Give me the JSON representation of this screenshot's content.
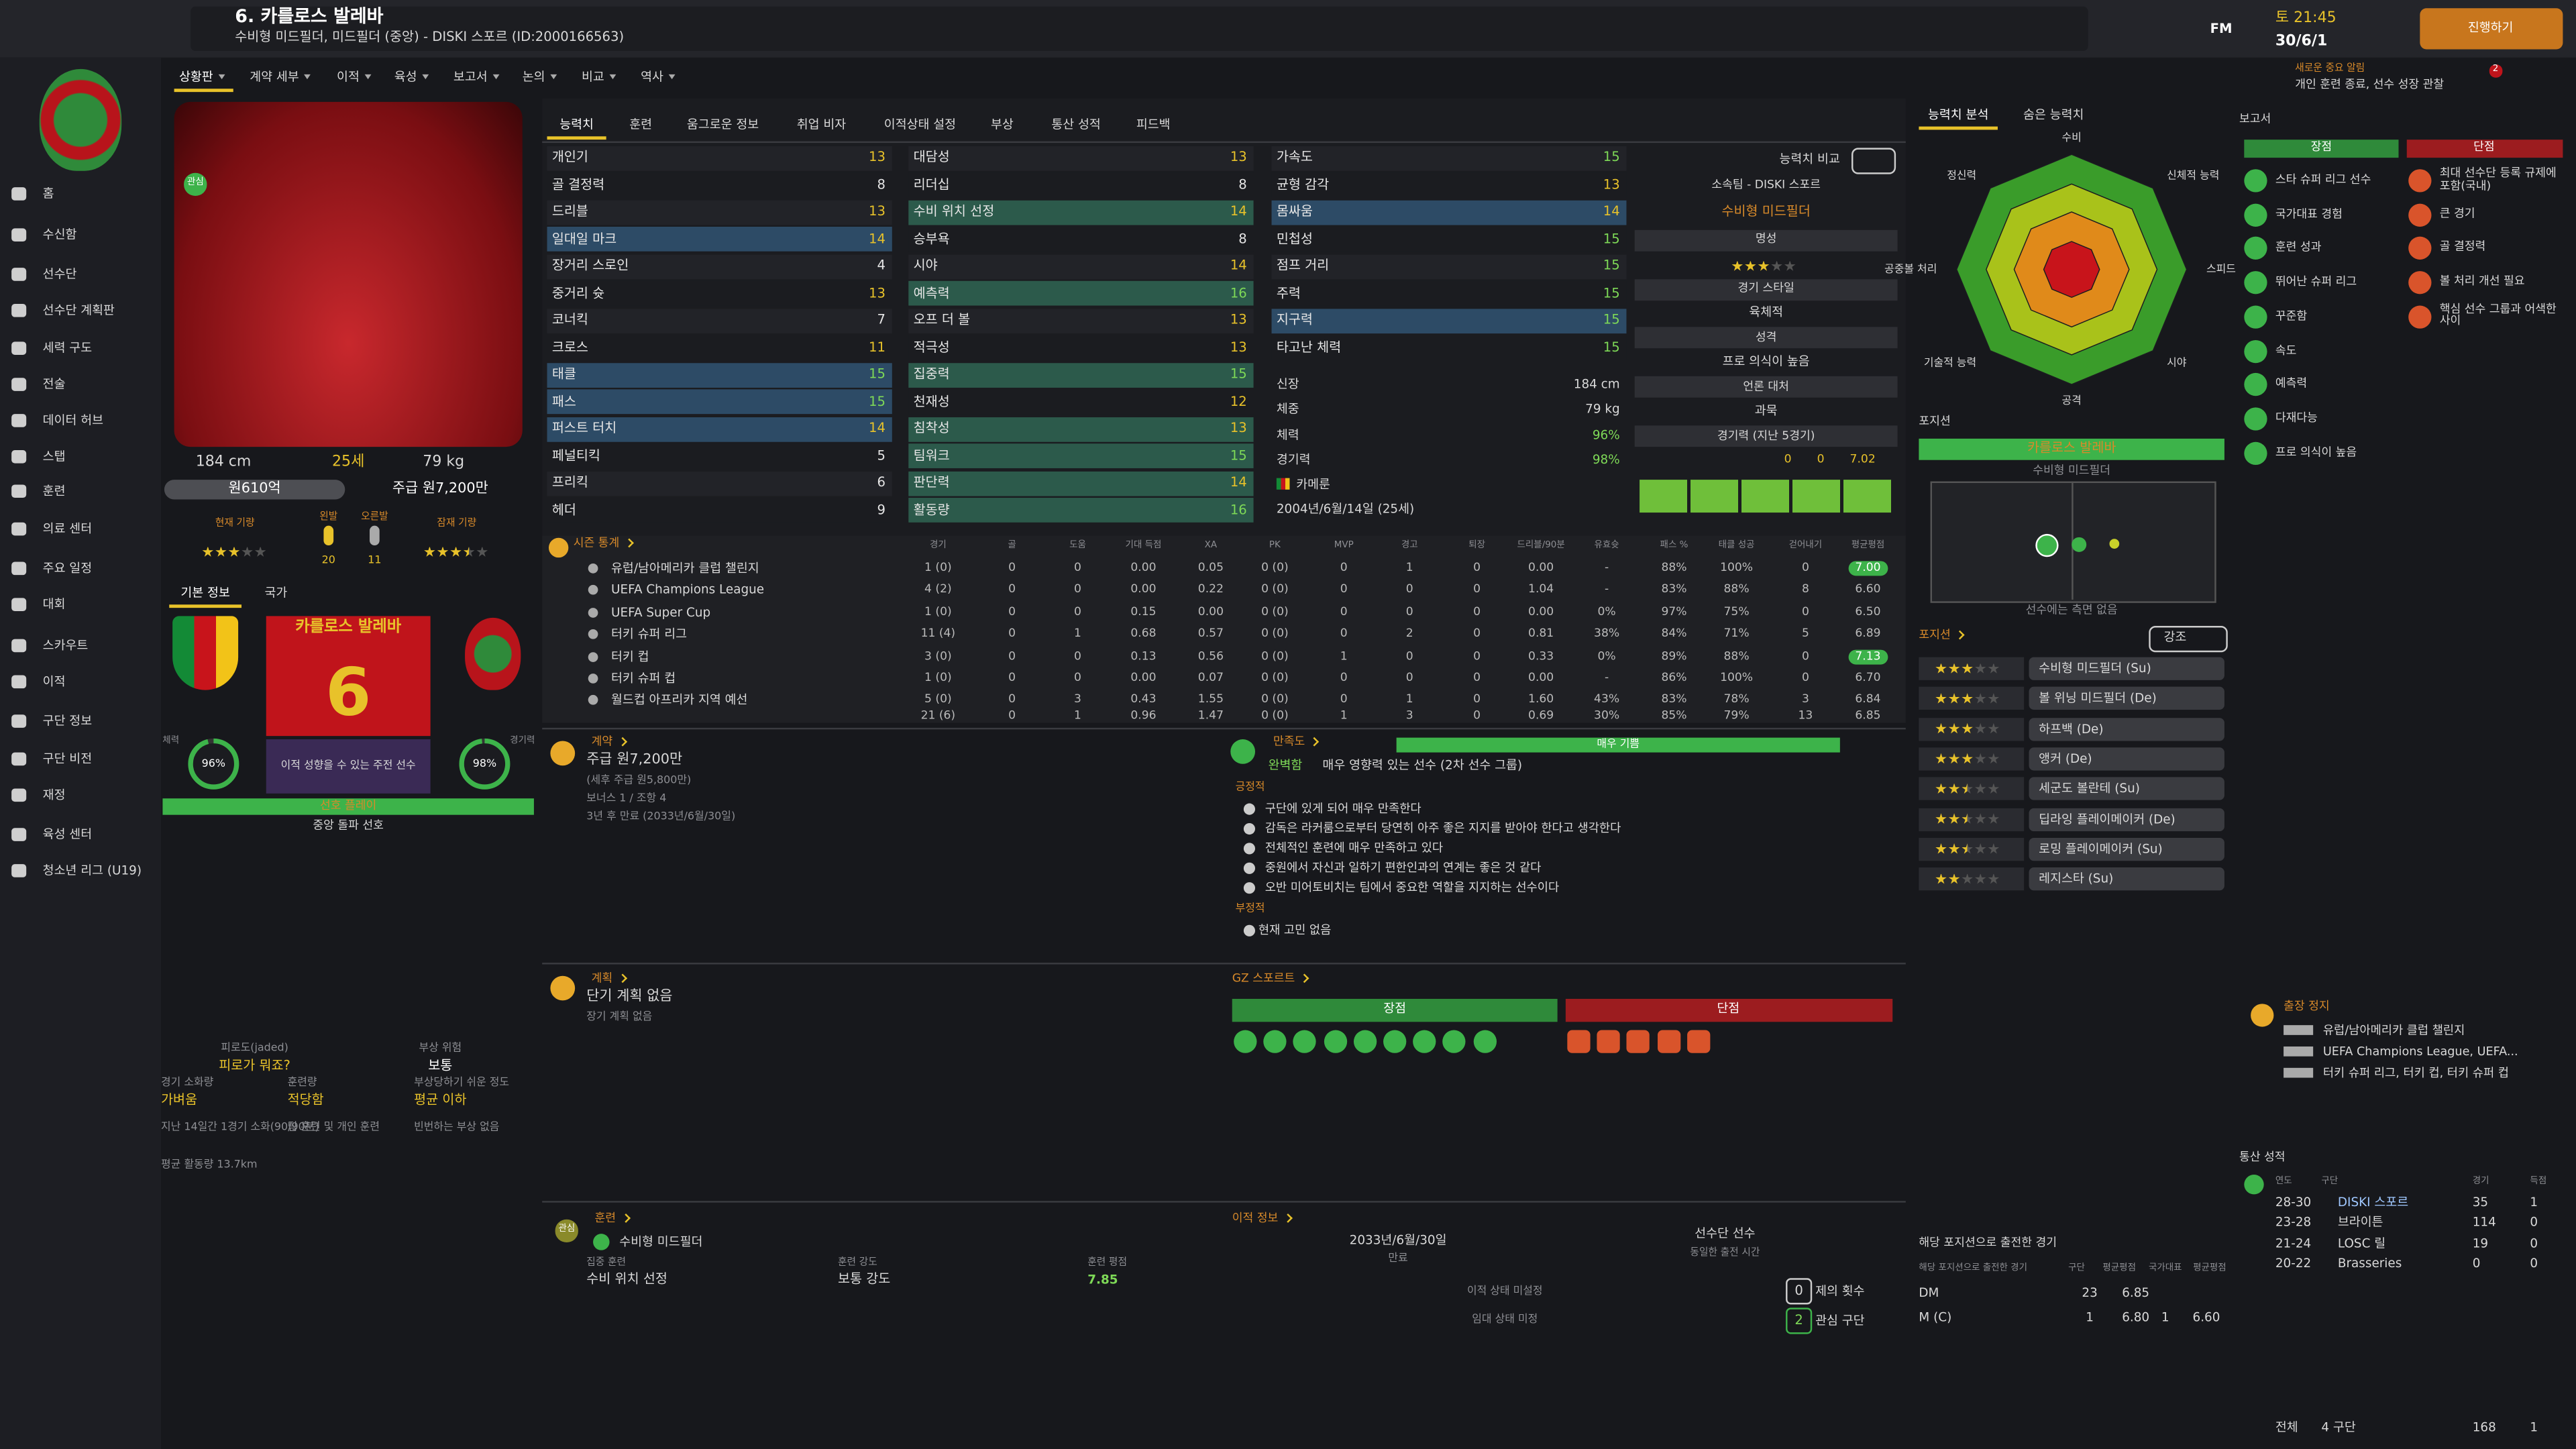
{
  "header": {
    "title": "6. 카를로스 발레바",
    "subtitle": "수비형 미드필더, 미드필더 (중앙) - DISKI 스포르 (ID:2000166563)",
    "brand": "FM",
    "time": "토 21:45",
    "date": "30/6/1",
    "continue": "진행하기",
    "notice_title": "새로운 중요 알림",
    "notice": "개인 훈련 종료, 선수 성장 관찰",
    "notice_count": 2
  },
  "nav": [
    "홈",
    "수신함",
    "선수단",
    "선수단 계획판",
    "세력 구도",
    "전술",
    "데이터 허브",
    "스탭",
    "훈련",
    "의료 센터",
    "주요 일정",
    "대회",
    "스카우트",
    "이적",
    "구단 정보",
    "구단 비전",
    "재정",
    "육성 센터",
    "청소년 리그 (U19)"
  ],
  "tabs": [
    "상황판",
    "계약 세부",
    "이적",
    "육성",
    "보고서",
    "논의",
    "비교",
    "역사"
  ],
  "profile": {
    "badge": "관심",
    "height": "184 cm",
    "age": "25세",
    "weight": "79 kg",
    "value": "원610억",
    "wage": "주급 원7,200만",
    "current_label": "현재 기량",
    "current_stars": 3,
    "left_foot_label": "왼발",
    "left_foot": 20,
    "right_foot_label": "오른발",
    "right_foot": 11,
    "potential_label": "잠재 기량",
    "potential_stars": 3.5
  },
  "info_tabs": [
    "기본 정보",
    "국가"
  ],
  "card": {
    "name": "카를로스 발레바",
    "number": 6,
    "status": "이적 성향을 수 있는 주전 선수",
    "gauges": [
      {
        "name": "체력",
        "value": 96,
        "value_label": "96%"
      },
      {
        "name": "경기력",
        "value": 98,
        "value_label": "98%"
      }
    ],
    "play_label": "선호 플레이",
    "play": "중앙 돌파 선호"
  },
  "fitness": [
    {
      "label": "피로도(jaded)",
      "value": "피로가 뭐죠?"
    },
    {
      "label": "부상 위험",
      "value": "보통"
    },
    {
      "label": "경기 소화량",
      "value": "가벼움"
    },
    {
      "label": "훈련량",
      "value": "적당함"
    },
    {
      "label": "부상당하기 쉬운 정도",
      "value": "평균 이하"
    }
  ],
  "fitness_notes": [
    "지난 14일간 1경기 소화(90/90분)",
    "팀 훈련 및 개인 훈련",
    "빈번하는 부상 없음",
    "평균 활동량 13.7km"
  ],
  "attributes": {
    "tabs": [
      "능력치",
      "훈련",
      "움그로운 정보",
      "취업 비자",
      "이적상태 설정",
      "부상",
      "통산 성적",
      "피드백"
    ],
    "columns": [
      [
        {
          "name": "개인기",
          "value": 13
        },
        {
          "name": "골 결정력",
          "value": 8
        },
        {
          "name": "드리블",
          "value": 13
        },
        {
          "name": "일대일 마크",
          "value": 14,
          "key": true
        },
        {
          "name": "장거리 스로인",
          "value": 4
        },
        {
          "name": "중거리 슛",
          "value": 13
        },
        {
          "name": "코너킥",
          "value": 7
        },
        {
          "name": "크로스",
          "value": 11
        },
        {
          "name": "태클",
          "value": 15,
          "key": true
        },
        {
          "name": "패스",
          "value": 15,
          "key": true
        },
        {
          "name": "퍼스트 터치",
          "value": 14,
          "key": true
        },
        {
          "name": "페널티킥",
          "value": 5
        },
        {
          "name": "프리킥",
          "value": 6
        },
        {
          "name": "헤더",
          "value": 9
        }
      ],
      [
        {
          "name": "대담성",
          "value": 13
        },
        {
          "name": "리더십",
          "value": 8
        },
        {
          "name": "수비 위치 선정",
          "value": 14,
          "key": true
        },
        {
          "name": "승부욕",
          "value": 8
        },
        {
          "name": "시야",
          "value": 14
        },
        {
          "name": "예측력",
          "value": 16,
          "key": true
        },
        {
          "name": "오프 더 볼",
          "value": 13
        },
        {
          "name": "적극성",
          "value": 13
        },
        {
          "name": "집중력",
          "value": 15,
          "key": true
        },
        {
          "name": "천재성",
          "value": 12
        },
        {
          "name": "침착성",
          "value": 13,
          "key": true
        },
        {
          "name": "팀워크",
          "value": 15,
          "key": true
        },
        {
          "name": "판단력",
          "value": 14,
          "key": true
        },
        {
          "name": "활동량",
          "value": 16,
          "key": true
        }
      ],
      [
        {
          "name": "가속도",
          "value": 15
        },
        {
          "name": "균형 감각",
          "value": 13
        },
        {
          "name": "몸싸움",
          "value": 14,
          "key": true
        },
        {
          "name": "민첩성",
          "value": 15
        },
        {
          "name": "점프 거리",
          "value": 15
        },
        {
          "name": "주력",
          "value": 15
        },
        {
          "name": "지구력",
          "value": 15,
          "key": true
        },
        {
          "name": "타고난 체력",
          "value": 15
        }
      ]
    ],
    "physical_info": [
      {
        "label": "신장",
        "value": "184 cm"
      },
      {
        "label": "체중",
        "value": "79 kg"
      },
      {
        "label": "체력",
        "value": "96%"
      },
      {
        "label": "경기력",
        "value": "98%"
      }
    ],
    "nationality": "카메룬",
    "birth": "2004년/6월/14일 (25세)"
  },
  "side": {
    "compare": "능력치 비교",
    "club": "소속팀 - DISKI 스포르",
    "position": "수비형 미드필더",
    "reputation_label": "명성",
    "reputation_stars": 3,
    "style_label": "경기 스타일",
    "style": "육체적",
    "personality_label": "성격",
    "personality": "프로 의식이 높음",
    "media_label": "언론 대처",
    "media": "과묵",
    "form_label": "경기력 (지난 5경기)",
    "goals": "0",
    "assists": "0",
    "form_rating": "7.02"
  },
  "season": {
    "title": "시즌 통계",
    "columns": [
      "경기",
      "골",
      "도움",
      "기대 득점",
      "XA",
      "PK",
      "MVP",
      "경고",
      "퇴장",
      "드리블/90분",
      "유효슛",
      "패스 %",
      "태클 성공",
      "걷어내기",
      "평균평점"
    ],
    "rows": [
      {
        "name": "유럽/남아메리카 클럽 챌린지",
        "cells": [
          "1 (0)",
          "0",
          "0",
          "0.00",
          "0.05",
          "0 (0)",
          "0",
          "1",
          "0",
          "0.00",
          "-",
          "88%",
          "100%",
          "0",
          "7.00"
        ]
      },
      {
        "name": "UEFA Champions League",
        "cells": [
          "4 (2)",
          "0",
          "0",
          "0.00",
          "0.22",
          "0 (0)",
          "0",
          "0",
          "0",
          "1.04",
          "-",
          "83%",
          "88%",
          "8",
          "6.60"
        ]
      },
      {
        "name": "UEFA Super Cup",
        "cells": [
          "1 (0)",
          "0",
          "0",
          "0.15",
          "0.00",
          "0 (0)",
          "0",
          "0",
          "0",
          "0.00",
          "0%",
          "97%",
          "75%",
          "0",
          "6.50"
        ]
      },
      {
        "name": "터키 슈퍼 리그",
        "cells": [
          "11 (4)",
          "0",
          "1",
          "0.68",
          "0.57",
          "0 (0)",
          "0",
          "2",
          "0",
          "0.81",
          "38%",
          "84%",
          "71%",
          "5",
          "6.89"
        ]
      },
      {
        "name": "터키 컵",
        "cells": [
          "3 (0)",
          "0",
          "0",
          "0.13",
          "0.56",
          "0 (0)",
          "1",
          "0",
          "0",
          "0.33",
          "0%",
          "89%",
          "88%",
          "0",
          "7.13"
        ]
      },
      {
        "name": "터키 슈퍼 컵",
        "cells": [
          "1 (0)",
          "0",
          "0",
          "0.00",
          "0.07",
          "0 (0)",
          "0",
          "0",
          "0",
          "0.00",
          "-",
          "86%",
          "100%",
          "0",
          "6.70"
        ]
      },
      {
        "name": "월드컵 아프리카 지역 예선",
        "cells": [
          "5 (0)",
          "0",
          "3",
          "0.43",
          "1.55",
          "0 (0)",
          "0",
          "1",
          "0",
          "1.60",
          "43%",
          "83%",
          "78%",
          "3",
          "6.84"
        ]
      }
    ],
    "total": [
      "21 (6)",
      "0",
      "1",
      "0.96",
      "1.47",
      "0 (0)",
      "1",
      "3",
      "0",
      "0.69",
      "30%",
      "85%",
      "79%",
      "13",
      "6.85"
    ]
  },
  "contract": {
    "title": "계약",
    "wage": "주급 원7,200만",
    "net": "(세후 주급 원5,800만)",
    "bonus": "보너스 1 / 조항 4",
    "expiry": "3년 후 만료 (2033년/6월/30일)"
  },
  "happiness": {
    "title": "만족도",
    "level": "매우 기쁨",
    "status": "완벽함",
    "role": "매우 영향력 있는 선수 (2차 선수 그룹)",
    "positive_label": "긍정적",
    "positives": [
      "구단에 있게 되어 매우 만족한다",
      "감독은 라커룸으로부터 당연히 아주 좋은 지지를 받아야 한다고 생각한다",
      "전체적인 훈련에 매우 만족하고 있다",
      "중원에서 자신과 일하기 편한인과의 연계는 좋은 것 같다",
      "오반 미어토비치는 팀에서 중요한 역할을 지지하는 선수이다"
    ],
    "negative_label": "부정적",
    "negatives": [
      "현재 고민 없음"
    ]
  },
  "plans": {
    "title": "계획",
    "short": "단기 계획 없음",
    "long": "장기 계획 없음"
  },
  "scout": {
    "title": "GZ 스포르트",
    "strengths": "장점",
    "weaknesses": "단점"
  },
  "training": {
    "title": "훈련",
    "badge": "관심",
    "role": "수비형 미드필더",
    "focus_label": "집중 훈련",
    "focus": "수비 위치 선정",
    "intensity_label": "훈련 강도",
    "intensity": "보통 강도",
    "rating_label": "훈련 평점",
    "rating": "7.85"
  },
  "transfer": {
    "title": "이적 정보",
    "expiry": "2033년/6월/30일",
    "expiry_label": "만료",
    "squad": "선수단 선수",
    "squad_note": "동일한 출전 시간",
    "transfer_status": "이적 상태 미설정",
    "loan_status": "임대 상태 미정",
    "offers": "0",
    "offers_label": "제의 횟수",
    "interest": "2",
    "interest_label": "관심 구단"
  },
  "analysis": {
    "tabs": [
      "능력치 분석",
      "숨은 능력치"
    ],
    "radar_labels": [
      "수비",
      "신체적 능력",
      "스피드",
      "시야",
      "공격",
      "기술적 능력",
      "공중볼 처리",
      "정신력"
    ]
  },
  "position": {
    "title": "포지션",
    "name": "카를로스 발레바",
    "position": "수비형 미드필더",
    "note": "선수에는 측면 없음",
    "roles_title": "포지션",
    "roles_filter": "강조",
    "roles": [
      {
        "name": "수비형 미드필더 (Su)",
        "stars": 3
      },
      {
        "name": "볼 위닝 미드필더 (De)",
        "stars": 3
      },
      {
        "name": "하프백 (De)",
        "stars": 3
      },
      {
        "name": "앵커 (De)",
        "stars": 3
      },
      {
        "name": "세군도 볼란테 (Su)",
        "stars": 2.5
      },
      {
        "name": "딥라잉 플레이메이커 (De)",
        "stars": 2.5
      },
      {
        "name": "로밍 플레이메이커 (Su)",
        "stars": 2.5
      },
      {
        "name": "레지스타 (Su)",
        "stars": 2
      }
    ]
  },
  "apps": {
    "title": "해당 포지션으로 출전한 경기",
    "columns": [
      "해당 포지션으로 출전한 경기",
      "구단",
      "평균평점",
      "국가대표",
      "평균평점"
    ],
    "rows": [
      [
        "DM",
        "23",
        "6.85"
      ],
      [
        "M (C)",
        "1",
        "6.80",
        "1",
        "6.60"
      ]
    ]
  },
  "report": {
    "title": "보고서",
    "strengths_label": "장점",
    "strengths": [
      "스타 슈퍼 리그 선수",
      "국가대표 경험",
      "훈련 성과",
      "뛰어난 슈퍼 리그",
      "꾸준함",
      "속도",
      "예측력",
      "다재다능",
      "프로 의식이 높음"
    ],
    "weaknesses_label": "단점",
    "weaknesses": [
      "최대 선수단 등록 규제에 포함(국내)",
      "큰 경기",
      "골 결정력",
      "볼 처리 개선 필요",
      "핵심 선수 그룹과 어색한 사이"
    ]
  },
  "suspension": {
    "title": "출장 정지",
    "items": [
      "유럽/남아메리카 클럽 챌린지",
      "UEFA Champions League, UEFA...",
      "터키 슈퍼 리그, 터키 컵, 터키 슈퍼 컵"
    ]
  },
  "career": {
    "title": "통산 성적",
    "columns": [
      "연도",
      "구단",
      "경기",
      "득점"
    ],
    "rows": [
      [
        "28-30",
        "DISKI 스포르",
        "35",
        "1"
      ],
      [
        "23-28",
        "브라이튼",
        "114",
        "0"
      ],
      [
        "21-24",
        "LOSC 릴",
        "19",
        "0"
      ],
      [
        "20-22",
        "Brasseries",
        "0",
        "0"
      ]
    ],
    "total": [
      "전체",
      "4 구단",
      "168",
      "1"
    ]
  }
}
